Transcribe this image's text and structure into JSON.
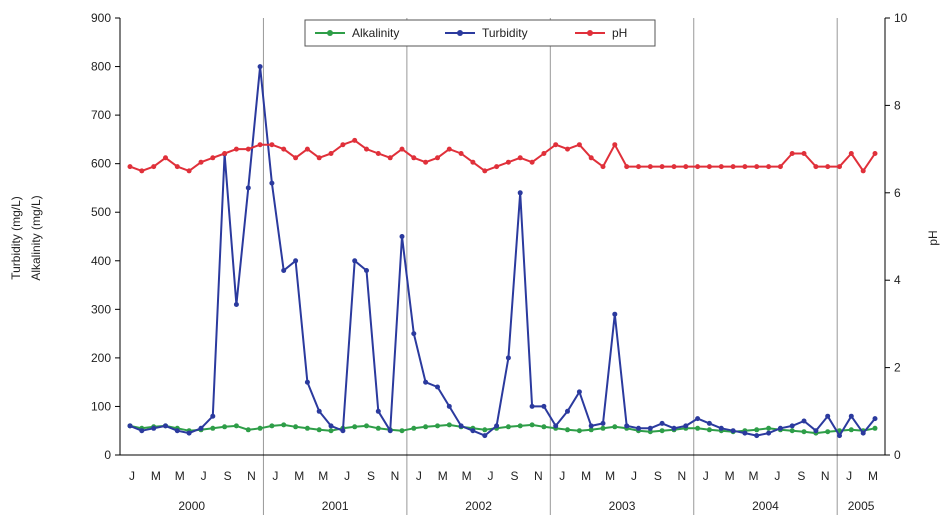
{
  "chart_data": {
    "type": "line",
    "title": "",
    "ylabel_left_line1": "Turbidity (mg/L)",
    "ylabel_left_line2": "Alkalinity (mg/L)",
    "ylabel_right": "pH",
    "y_left_lim": [
      0,
      900
    ],
    "y_left_ticks": [
      "0",
      "100",
      "200",
      "300",
      "400",
      "500",
      "600",
      "700",
      "800",
      "900"
    ],
    "y_right_lim": [
      0,
      10
    ],
    "y_right_ticks": [
      "0",
      "2",
      "4",
      "6",
      "8",
      "10"
    ],
    "month_labels": [
      "J",
      "M",
      "M",
      "J",
      "S",
      "N",
      "J",
      "M",
      "M",
      "J",
      "S",
      "N",
      "J",
      "M",
      "M",
      "J",
      "S",
      "N",
      "J",
      "M",
      "M",
      "J",
      "S",
      "N",
      "J",
      "M",
      "M",
      "J",
      "S",
      "N",
      "J",
      "M"
    ],
    "years": [
      "2000",
      "2001",
      "2002",
      "2003",
      "2004",
      "2005"
    ],
    "x_points": 64,
    "legend": [
      "Alkalinity",
      "Turbidity",
      "pH"
    ],
    "legend_position": "top-center",
    "series": [
      {
        "name": "Alkalinity",
        "color": "#2e9e48",
        "axis": "left",
        "values": [
          60,
          55,
          58,
          60,
          55,
          50,
          52,
          55,
          58,
          60,
          52,
          55,
          60,
          62,
          58,
          55,
          52,
          50,
          55,
          58,
          60,
          55,
          52,
          50,
          55,
          58,
          60,
          62,
          58,
          55,
          52,
          55,
          58,
          60,
          62,
          58,
          55,
          52,
          50,
          52,
          55,
          58,
          55,
          50,
          48,
          50,
          52,
          55,
          55,
          52,
          50,
          48,
          50,
          52,
          55,
          52,
          50,
          48,
          45,
          48,
          50,
          52,
          50,
          55
        ]
      },
      {
        "name": "Turbidity",
        "color": "#2b3a9e",
        "axis": "left",
        "values": [
          60,
          50,
          55,
          60,
          50,
          45,
          55,
          80,
          620,
          310,
          550,
          800,
          560,
          380,
          400,
          150,
          90,
          60,
          50,
          400,
          380,
          90,
          50,
          450,
          250,
          150,
          140,
          100,
          60,
          50,
          40,
          60,
          200,
          540,
          100,
          100,
          60,
          90,
          130,
          60,
          65,
          290,
          60,
          55,
          55,
          65,
          55,
          60,
          75,
          65,
          55,
          50,
          45,
          40,
          45,
          55,
          60,
          70,
          50,
          80,
          40,
          80,
          45,
          75
        ]
      },
      {
        "name": "pH",
        "color": "#e0303a",
        "axis": "right",
        "values": [
          6.6,
          6.5,
          6.6,
          6.8,
          6.6,
          6.5,
          6.7,
          6.8,
          6.9,
          7.0,
          7.0,
          7.1,
          7.1,
          7.0,
          6.8,
          7.0,
          6.8,
          6.9,
          7.1,
          7.2,
          7.0,
          6.9,
          6.8,
          7.0,
          6.8,
          6.7,
          6.8,
          7.0,
          6.9,
          6.7,
          6.5,
          6.6,
          6.7,
          6.8,
          6.7,
          6.9,
          7.1,
          7.0,
          7.1,
          6.8,
          6.6,
          7.1,
          6.6,
          6.6,
          6.6,
          6.6,
          6.6,
          6.6,
          6.6,
          6.6,
          6.6,
          6.6,
          6.6,
          6.6,
          6.6,
          6.6,
          6.9,
          6.9,
          6.6,
          6.6,
          6.6,
          6.9,
          6.5,
          6.9
        ]
      }
    ]
  }
}
